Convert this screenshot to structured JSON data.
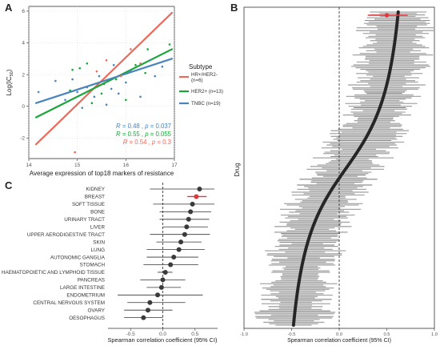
{
  "colors": {
    "hr": "#ec6a5c",
    "her2": "#1aa63a",
    "tnbc": "#4a84bd",
    "dot": "#333333",
    "highlight": "#e5343a",
    "band": "#a6a6a6"
  },
  "chart_data": [
    {
      "panel": "A",
      "type": "scatter",
      "xlabel": "Average expression of top18 markers of resistance",
      "ylabel": "Log(IC50)",
      "xlim": [
        14,
        17
      ],
      "ylim": [
        -3.3,
        6.3
      ],
      "x_ticks": [
        14,
        15,
        16,
        17
      ],
      "y_ticks": [
        -2,
        0,
        2,
        4,
        6
      ],
      "legend_title": "Subtype",
      "series": [
        {
          "name": "HR+/HER2- (n=6)",
          "color_key": "hr",
          "points": [
            [
              14.95,
              -2.9
            ],
            [
              15.6,
              2.9
            ],
            [
              15.9,
              1.9
            ],
            [
              16.1,
              3.6
            ],
            [
              16.3,
              2.7
            ],
            [
              15.4,
              2.2
            ]
          ],
          "fit": [
            [
              14.15,
              -2.4
            ],
            [
              16.95,
              5.9
            ]
          ],
          "stat": {
            "R": "0.54",
            "p": "0.3"
          }
        },
        {
          "name": "HER2+ (n=13)",
          "color_key": "her2",
          "points": [
            [
              14.85,
              1.0
            ],
            [
              15.05,
              2.4
            ],
            [
              15.3,
              0.2
            ],
            [
              15.5,
              0.8
            ],
            [
              15.55,
              1.4
            ],
            [
              15.8,
              1.7
            ],
            [
              16.0,
              0.4
            ],
            [
              16.2,
              2.6
            ],
            [
              16.4,
              2.1
            ],
            [
              16.45,
              3.6
            ],
            [
              16.9,
              3.9
            ],
            [
              15.2,
              2.7
            ],
            [
              14.9,
              2.3
            ]
          ],
          "fit": [
            [
              14.15,
              -0.7
            ],
            [
              16.95,
              3.6
            ]
          ],
          "stat": {
            "R": "0.55",
            "p": "0.055"
          }
        },
        {
          "name": "TNBC (n=19)",
          "color_key": "tnbc",
          "points": [
            [
              14.2,
              0.9
            ],
            [
              14.55,
              1.6
            ],
            [
              14.75,
              0.4
            ],
            [
              14.9,
              1.7
            ],
            [
              15.0,
              0.9
            ],
            [
              15.2,
              1.2
            ],
            [
              15.35,
              0.6
            ],
            [
              15.45,
              1.9
            ],
            [
              15.6,
              0.1
            ],
            [
              15.7,
              1.1
            ],
            [
              15.75,
              2.6
            ],
            [
              15.85,
              0.8
            ],
            [
              16.0,
              1.5
            ],
            [
              16.1,
              2.2
            ],
            [
              16.3,
              0.6
            ],
            [
              16.5,
              2.9
            ],
            [
              16.6,
              1.9
            ],
            [
              16.75,
              2.5
            ],
            [
              15.1,
              -0.1
            ]
          ],
          "fit": [
            [
              14.15,
              0.2
            ],
            [
              16.95,
              3.0
            ]
          ],
          "stat": {
            "R": "0.48",
            "p": "0.037"
          }
        }
      ]
    },
    {
      "panel": "B",
      "type": "scatter",
      "ylabel": "Drug",
      "xlabel": "Spearman correlation coefficient (95% CI)",
      "xlim": [
        -1.0,
        1.0
      ],
      "x_ticks": [
        "-1.0",
        "-0.5",
        "0.0",
        "0.5",
        "1.0"
      ],
      "description_of_series": "~220 drugs ranked by Spearman correlation; black points with grey 95% CI bars",
      "rank_curve": {
        "n_drugs": 220,
        "rho_first": -0.48,
        "rho_last": 0.62,
        "ci_halfwidth_typical": 0.3
      },
      "highlight": {
        "rho": 0.5,
        "ci": [
          0.3,
          0.72
        ],
        "color_key": "highlight"
      }
    },
    {
      "panel": "C",
      "type": "scatter",
      "xlabel": "Spearman correlation coefficient (95% CI)",
      "xlim": [
        -0.85,
        0.85
      ],
      "x_ticks": [
        "-0.5",
        "0.0",
        "0.5"
      ],
      "x_tick_values": [
        -0.5,
        0.0,
        0.5
      ],
      "categories": [
        "KIDNEY",
        "BREAST",
        "SOFT TISSUE",
        "BONE",
        "URINARY TRACT",
        "LIVER",
        "UPPER AERODIGESTIVE TRACT",
        "SKIN",
        "LUNG",
        "AUTONOMIC GANGLIA",
        "STOMACH",
        "HAEMATOPOIETIC AND LYMPHOID TISSUE",
        "PANCREAS",
        "LARGE INTESTINE",
        "ENDOMETRIUM",
        "CENTRAL NERVOUS SYSTEM",
        "OVARY",
        "OESOPHAGUS"
      ],
      "rho": [
        0.57,
        0.52,
        0.46,
        0.43,
        0.4,
        0.37,
        0.34,
        0.28,
        0.25,
        0.17,
        0.12,
        0.04,
        0.0,
        -0.02,
        -0.08,
        -0.2,
        -0.23,
        -0.3
      ],
      "ci_low": [
        -0.2,
        0.38,
        -0.15,
        -0.05,
        -0.05,
        0.0,
        -0.2,
        -0.1,
        -0.25,
        -0.25,
        -0.3,
        -0.08,
        -0.35,
        -0.25,
        -0.7,
        -0.55,
        -0.6,
        -0.6
      ],
      "ci_high": [
        0.8,
        0.68,
        0.8,
        0.75,
        0.72,
        0.7,
        0.73,
        0.6,
        0.65,
        0.55,
        0.55,
        0.15,
        0.35,
        0.28,
        0.62,
        0.35,
        0.15,
        0.0
      ],
      "highlight_category": "BREAST"
    }
  ]
}
